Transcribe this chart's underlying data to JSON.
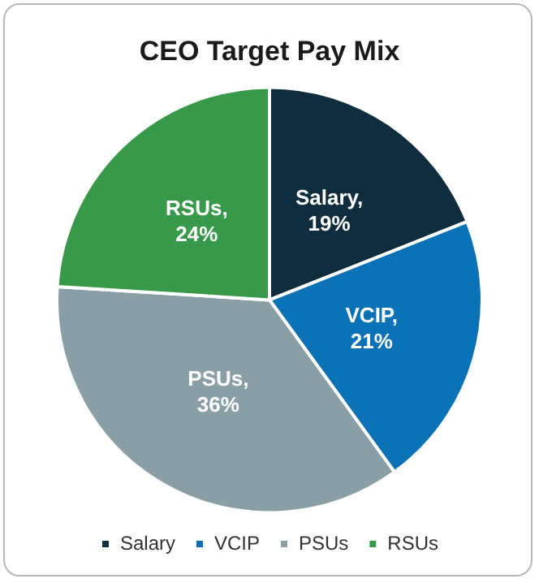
{
  "chart_data": {
    "type": "pie",
    "title": "CEO Target Pay Mix",
    "categories": [
      "Salary",
      "VCIP",
      "PSUs",
      "RSUs"
    ],
    "values": [
      19,
      21,
      36,
      24
    ],
    "colors": [
      "#0f2d3c",
      "#0b72b5",
      "#8a9ea6",
      "#38994a"
    ],
    "value_labels": [
      "Salary, 19%",
      "VCIP, 21%",
      "PSUs, 36%",
      "RSUs, 24%"
    ],
    "legend": "bottom"
  }
}
